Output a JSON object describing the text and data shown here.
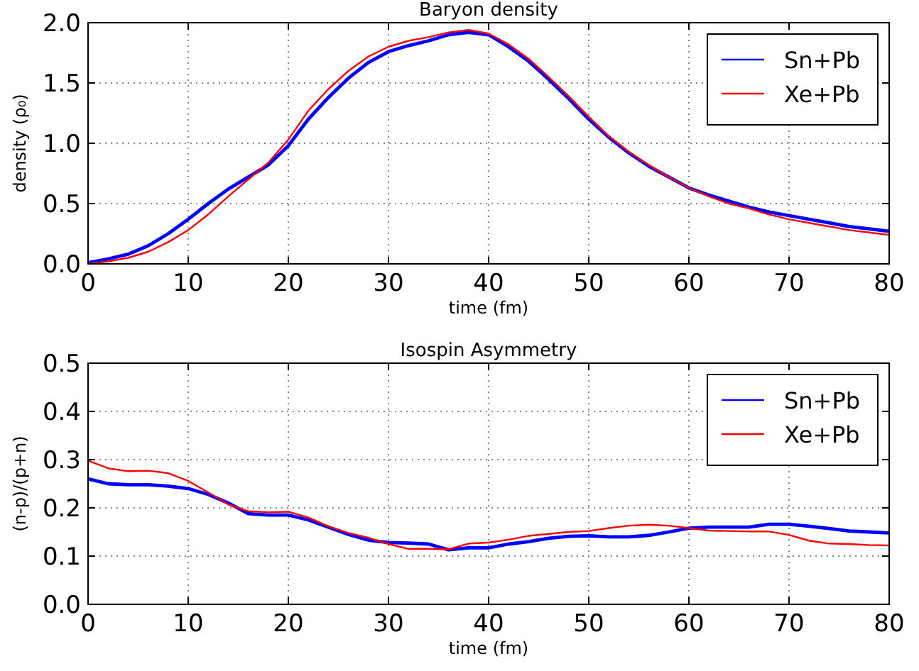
{
  "chart_data": [
    {
      "type": "line",
      "title": "Baryon density",
      "xlabel": "time (fm)",
      "ylabel": "density (ρ₀)",
      "x": [
        0,
        2,
        4,
        6,
        8,
        10,
        12,
        14,
        16,
        18,
        20,
        22,
        24,
        26,
        28,
        30,
        32,
        34,
        36,
        38,
        40,
        42,
        44,
        46,
        48,
        50,
        52,
        54,
        56,
        58,
        60,
        62,
        64,
        66,
        68,
        70,
        72,
        74,
        76,
        78,
        80
      ],
      "xlim": [
        0,
        80
      ],
      "xticks": [
        0,
        10,
        20,
        30,
        40,
        50,
        60,
        70,
        80
      ],
      "ylim": [
        0,
        2
      ],
      "yticks": [
        {
          "value": 0,
          "label": "0.0"
        },
        {
          "value": 0.5,
          "label": "0.5"
        },
        {
          "value": 1,
          "label": "1.0"
        },
        {
          "value": 1.5,
          "label": "1.5"
        },
        {
          "value": 2,
          "label": "2.0"
        }
      ],
      "grid": true,
      "legend": "top right",
      "line_style": "solid",
      "series": [
        {
          "name": "Sn+Pb",
          "color": "#0000ff",
          "values": [
            0.01,
            0.04,
            0.08,
            0.15,
            0.25,
            0.37,
            0.5,
            0.62,
            0.72,
            0.82,
            0.98,
            1.2,
            1.38,
            1.54,
            1.67,
            1.76,
            1.81,
            1.85,
            1.9,
            1.92,
            1.9,
            1.8,
            1.68,
            1.53,
            1.37,
            1.2,
            1.05,
            0.92,
            0.81,
            0.72,
            0.63,
            0.57,
            0.52,
            0.47,
            0.43,
            0.4,
            0.37,
            0.34,
            0.31,
            0.29,
            0.27
          ]
        },
        {
          "name": "Xe+Pb",
          "color": "#ff0000",
          "values": [
            0,
            0.02,
            0.05,
            0.1,
            0.18,
            0.28,
            0.41,
            0.56,
            0.7,
            0.84,
            1.03,
            1.27,
            1.45,
            1.6,
            1.72,
            1.8,
            1.85,
            1.88,
            1.92,
            1.94,
            1.91,
            1.82,
            1.7,
            1.55,
            1.39,
            1.22,
            1.06,
            0.93,
            0.82,
            0.72,
            0.63,
            0.56,
            0.5,
            0.46,
            0.41,
            0.37,
            0.34,
            0.31,
            0.28,
            0.26,
            0.24
          ]
        }
      ]
    },
    {
      "type": "line",
      "title": "Isospin Asymmetry",
      "xlabel": "time (fm)",
      "ylabel": "(n-p)/(p+n)",
      "x": [
        0,
        2,
        4,
        6,
        8,
        10,
        12,
        14,
        16,
        18,
        20,
        22,
        24,
        26,
        28,
        30,
        32,
        34,
        36,
        38,
        40,
        42,
        44,
        46,
        48,
        50,
        52,
        54,
        56,
        58,
        60,
        62,
        64,
        66,
        68,
        70,
        72,
        74,
        76,
        78,
        80
      ],
      "xlim": [
        0,
        80
      ],
      "xticks": [
        0,
        10,
        20,
        30,
        40,
        50,
        60,
        70,
        80
      ],
      "ylim": [
        0,
        0.5
      ],
      "yticks": [
        {
          "value": 0,
          "label": "0.0"
        },
        {
          "value": 0.1,
          "label": "0.1"
        },
        {
          "value": 0.2,
          "label": "0.2"
        },
        {
          "value": 0.3,
          "label": "0.3"
        },
        {
          "value": 0.4,
          "label": "0.4"
        },
        {
          "value": 0.5,
          "label": "0.5"
        }
      ],
      "grid": true,
      "legend": "top right",
      "line_style": "solid",
      "series": [
        {
          "name": "Sn+Pb",
          "color": "#0000ff",
          "values": [
            0.26,
            0.25,
            0.248,
            0.248,
            0.245,
            0.24,
            0.228,
            0.21,
            0.188,
            0.185,
            0.185,
            0.175,
            0.16,
            0.145,
            0.133,
            0.128,
            0.127,
            0.125,
            0.113,
            0.117,
            0.117,
            0.125,
            0.13,
            0.137,
            0.141,
            0.142,
            0.14,
            0.14,
            0.143,
            0.15,
            0.158,
            0.16,
            0.16,
            0.16,
            0.166,
            0.166,
            0.162,
            0.157,
            0.152,
            0.15,
            0.148
          ]
        },
        {
          "name": "Xe+Pb",
          "color": "#ff0000",
          "values": [
            0.298,
            0.282,
            0.276,
            0.277,
            0.272,
            0.256,
            0.232,
            0.207,
            0.193,
            0.191,
            0.192,
            0.18,
            0.162,
            0.148,
            0.138,
            0.125,
            0.115,
            0.115,
            0.114,
            0.126,
            0.128,
            0.134,
            0.142,
            0.146,
            0.15,
            0.152,
            0.158,
            0.163,
            0.165,
            0.163,
            0.158,
            0.153,
            0.152,
            0.151,
            0.151,
            0.144,
            0.132,
            0.126,
            0.125,
            0.123,
            0.122
          ]
        }
      ]
    }
  ]
}
